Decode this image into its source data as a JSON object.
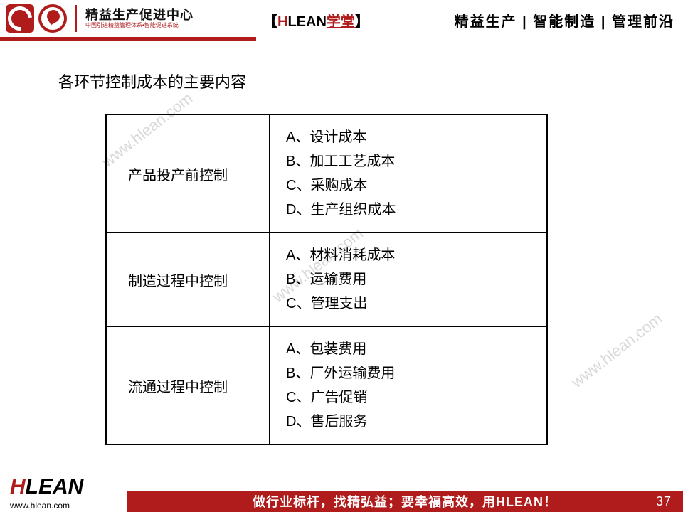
{
  "header": {
    "logo_main": "精益生产促进中心",
    "logo_sub": "中国引进精益管理体系•智能促进系统",
    "middle_bracket_l": "【",
    "middle_h": "H",
    "middle_lean": "LEAN",
    "middle_xt": "学堂",
    "middle_bracket_r": "】",
    "right_text": "精益生产 | 智能制造 | 管理前沿"
  },
  "title": "各环节控制成本的主要内容",
  "table": {
    "rows": [
      {
        "left": "产品投产前控制",
        "right": "A、设计成本\nB、加工工艺成本\nC、采购成本\nD、生产组织成本"
      },
      {
        "left": "制造过程中控制",
        "right": "A、材料消耗成本\nB、运输费用\nC、管理支出"
      },
      {
        "left": "流通过程中控制",
        "right": "A、包装费用\nB、厂外运输费用\nC、广告促销\nD、售后服务"
      }
    ]
  },
  "watermark": "www.hlean.com",
  "footer": {
    "logo_h": "H",
    "logo_lean": "LEAN",
    "url": "www.hlean.com",
    "slogan": "做行业标杆，找精弘益；要幸福高效，用HLEAN！",
    "page": "37"
  }
}
